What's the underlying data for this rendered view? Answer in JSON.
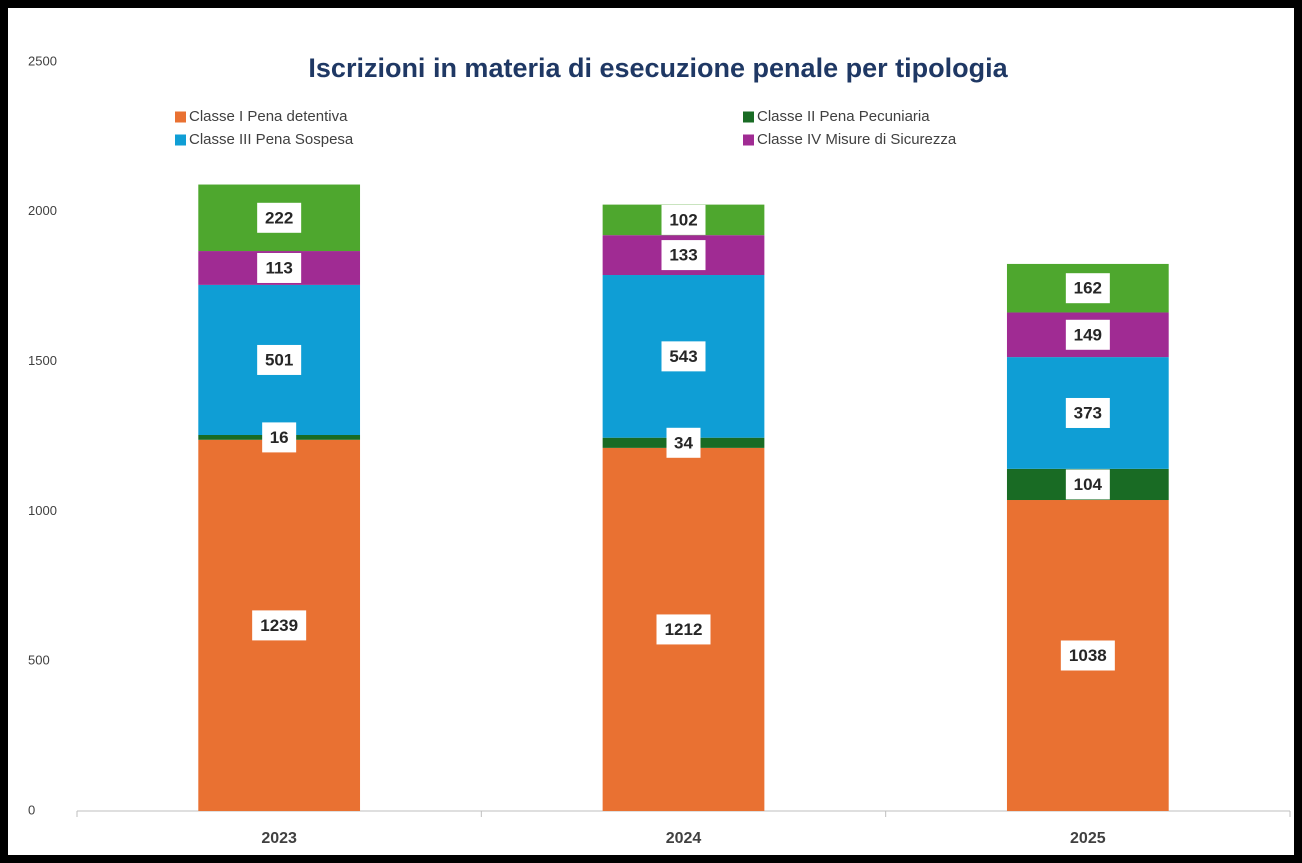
{
  "chart_data": {
    "type": "stacked_bar",
    "title": "Iscrizioni in materia di esecuzione penale per tipologia",
    "categories": [
      "2023",
      "2024",
      "2025"
    ],
    "series": [
      {
        "name": "Classe I Pena detentiva",
        "color": "#E97132",
        "values": [
          1239,
          1212,
          1038
        ]
      },
      {
        "name": "Classe II Pena Pecuniaria",
        "color": "#196B24",
        "values": [
          16,
          34,
          104
        ]
      },
      {
        "name": "Classe III Pena Sospesa",
        "color": "#0F9ED5",
        "values": [
          501,
          543,
          373
        ]
      },
      {
        "name": "Classe IV Misure di Sicurezza",
        "color": "#A02B93",
        "values": [
          113,
          133,
          149
        ]
      },
      {
        "color": "#4EA72E",
        "values": [
          222,
          102,
          162
        ]
      }
    ],
    "ylim": [
      0,
      2500
    ],
    "yticks": [
      0,
      500,
      1000,
      1500,
      2000,
      2500
    ],
    "grid": false,
    "legend": "top"
  }
}
